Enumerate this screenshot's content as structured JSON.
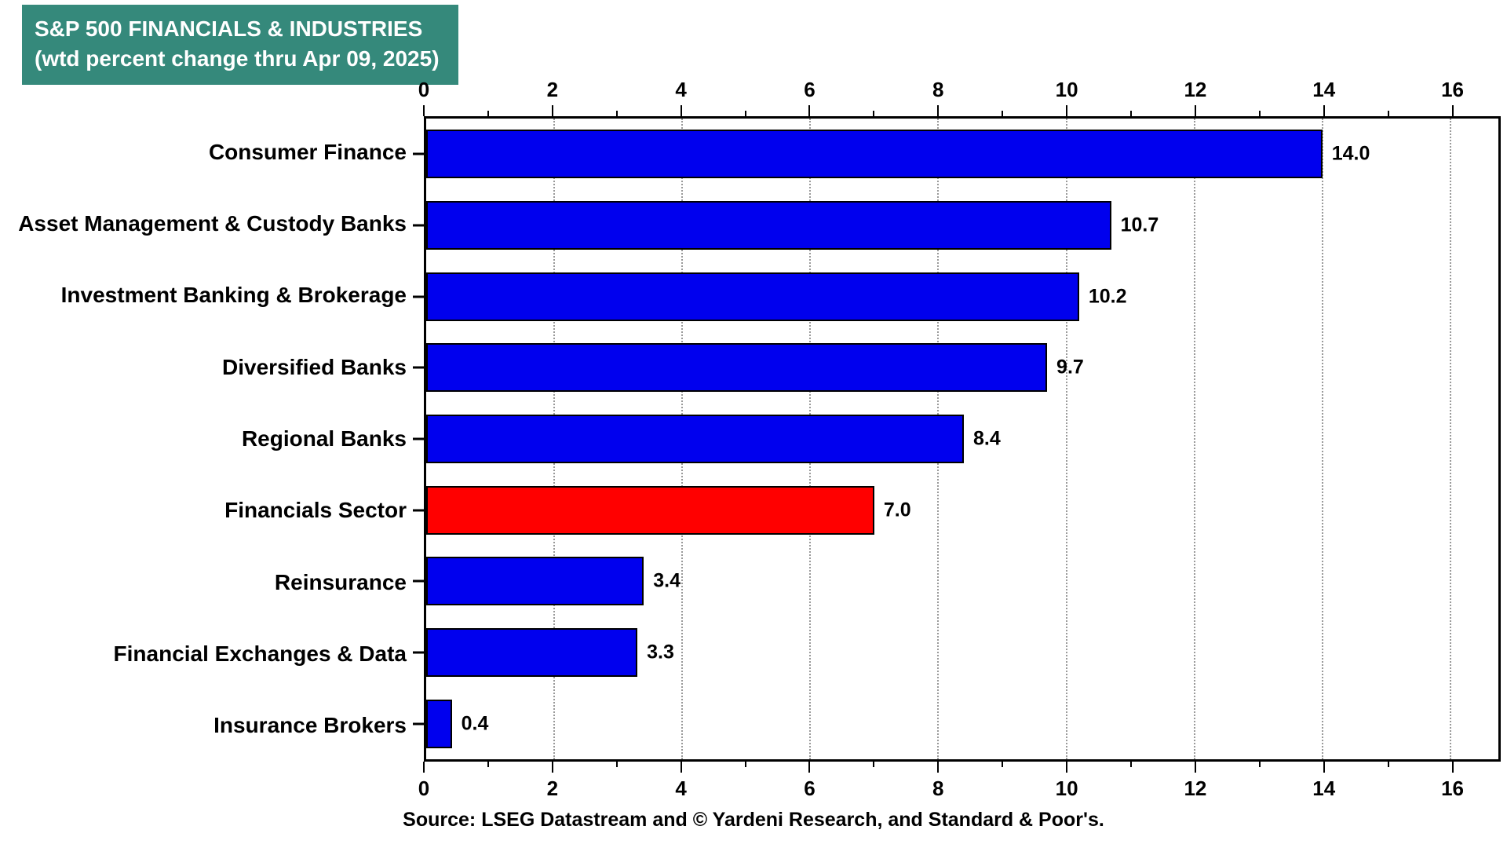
{
  "colors": {
    "title_bg": "#35897B",
    "bar_blue": "#0000EE",
    "bar_red": "#FF0000",
    "gridline": "#9a9a9a"
  },
  "chart_data": {
    "type": "bar",
    "orientation": "horizontal",
    "title": "S&P 500 FINANCIALS & INDUSTRIES",
    "subtitle": "(wtd percent change thru Apr 09, 2025)",
    "categories": [
      "Consumer Finance",
      "Asset Management & Custody Banks",
      "Investment Banking & Brokerage",
      "Diversified Banks",
      "Regional Banks",
      "Financials Sector",
      "Reinsurance",
      "Financial Exchanges & Data",
      "Insurance Brokers"
    ],
    "values": [
      14.0,
      10.7,
      10.2,
      9.7,
      8.4,
      7.0,
      3.4,
      3.3,
      0.4
    ],
    "value_labels": [
      "14.0",
      "10.7",
      "10.2",
      "9.7",
      "8.4",
      "7.0",
      "3.4",
      "3.3",
      "0.4"
    ],
    "bar_colors": [
      "#0000EE",
      "#0000EE",
      "#0000EE",
      "#0000EE",
      "#0000EE",
      "#FF0000",
      "#0000EE",
      "#0000EE",
      "#0000EE"
    ],
    "x_ticks": [
      0,
      2,
      4,
      6,
      8,
      10,
      12,
      14,
      16
    ],
    "x_max": 16.75,
    "xlim": [
      0,
      16.75
    ],
    "grid": "dotted-vertical",
    "legend": "none",
    "source": "Source: LSEG Datastream and © Yardeni Research, and Standard & Poor's."
  }
}
